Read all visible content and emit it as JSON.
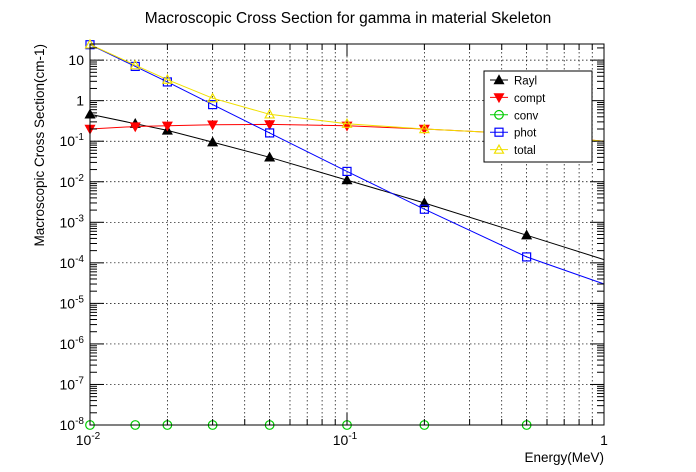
{
  "chart_data": {
    "type": "line",
    "title": "Macroscopic Cross Section for gamma in material Skeleton",
    "xlabel": "Energy(MeV)",
    "ylabel": "Macroscopic Cross Section(cm-1)",
    "xscale": "log",
    "yscale": "log",
    "xlim": [
      0.01,
      1
    ],
    "ylim": [
      1e-08,
      25
    ],
    "grid": true,
    "legend_position": "top-right",
    "x_tick_labels": [
      {
        "value": 0.01,
        "base": "10",
        "exp": "-2"
      },
      {
        "value": 0.1,
        "base": "10",
        "exp": "-1"
      },
      {
        "value": 1,
        "base": "1",
        "exp": ""
      }
    ],
    "y_tick_labels": [
      {
        "value": 1e-08,
        "base": "10",
        "exp": "-8"
      },
      {
        "value": 1e-07,
        "base": "10",
        "exp": "-7"
      },
      {
        "value": 1e-06,
        "base": "10",
        "exp": "-6"
      },
      {
        "value": 1e-05,
        "base": "10",
        "exp": "-5"
      },
      {
        "value": 0.0001,
        "base": "10",
        "exp": "-4"
      },
      {
        "value": 0.001,
        "base": "10",
        "exp": "-3"
      },
      {
        "value": 0.01,
        "base": "10",
        "exp": "-2"
      },
      {
        "value": 0.1,
        "base": "10",
        "exp": "-1"
      },
      {
        "value": 1,
        "base": "1",
        "exp": ""
      },
      {
        "value": 10,
        "base": "10",
        "exp": ""
      }
    ],
    "series": [
      {
        "name": "Rayl",
        "color": "#000000",
        "marker": "triangle-up",
        "filled": true,
        "line": [
          [
            0.01,
            0.46
          ],
          [
            0.015,
            0.27
          ],
          [
            0.02,
            0.185
          ],
          [
            0.03,
            0.095
          ],
          [
            0.05,
            0.04
          ],
          [
            0.1,
            0.011
          ],
          [
            0.2,
            0.003
          ],
          [
            0.5,
            0.00048
          ],
          [
            1,
            0.00012
          ]
        ],
        "markers": [
          [
            0.01,
            0.46
          ],
          [
            0.015,
            0.27
          ],
          [
            0.02,
            0.185
          ],
          [
            0.03,
            0.095
          ],
          [
            0.05,
            0.04
          ],
          [
            0.1,
            0.011
          ],
          [
            0.2,
            0.003
          ],
          [
            0.5,
            0.00048
          ]
        ]
      },
      {
        "name": "compt",
        "color": "#ff0000",
        "marker": "triangle-down",
        "filled": true,
        "line": [
          [
            0.01,
            0.2
          ],
          [
            0.015,
            0.23
          ],
          [
            0.02,
            0.24
          ],
          [
            0.03,
            0.255
          ],
          [
            0.05,
            0.26
          ],
          [
            0.1,
            0.24
          ],
          [
            0.2,
            0.2
          ],
          [
            0.5,
            0.15
          ],
          [
            1,
            0.1
          ]
        ],
        "markers": [
          [
            0.01,
            0.2
          ],
          [
            0.015,
            0.23
          ],
          [
            0.02,
            0.24
          ],
          [
            0.03,
            0.255
          ],
          [
            0.05,
            0.26
          ],
          [
            0.1,
            0.24
          ],
          [
            0.2,
            0.2
          ]
        ]
      },
      {
        "name": "conv",
        "color": "#00cc00",
        "marker": "circle",
        "filled": false,
        "line": [
          [
            0.01,
            1e-08
          ],
          [
            1,
            1e-08
          ]
        ],
        "markers": [
          [
            0.01,
            1e-08
          ],
          [
            0.015,
            1e-08
          ],
          [
            0.02,
            1e-08
          ],
          [
            0.03,
            1e-08
          ],
          [
            0.05,
            1e-08
          ],
          [
            0.1,
            1e-08
          ],
          [
            0.2,
            1e-08
          ],
          [
            0.5,
            1e-08
          ]
        ]
      },
      {
        "name": "phot",
        "color": "#0000ff",
        "marker": "square",
        "filled": false,
        "line": [
          [
            0.01,
            24
          ],
          [
            0.015,
            7
          ],
          [
            0.02,
            2.9
          ],
          [
            0.03,
            0.8
          ],
          [
            0.05,
            0.16
          ],
          [
            0.1,
            0.018
          ],
          [
            0.2,
            0.0021
          ],
          [
            0.5,
            0.00014
          ],
          [
            1,
            3e-05
          ]
        ],
        "markers": [
          [
            0.01,
            24
          ],
          [
            0.015,
            7
          ],
          [
            0.02,
            2.9
          ],
          [
            0.03,
            0.8
          ],
          [
            0.05,
            0.16
          ],
          [
            0.1,
            0.018
          ],
          [
            0.2,
            0.0021
          ],
          [
            0.5,
            0.00014
          ]
        ]
      },
      {
        "name": "total",
        "color": "#f0e000",
        "marker": "triangle-up",
        "filled": false,
        "line": [
          [
            0.01,
            24.5
          ],
          [
            0.015,
            7.5
          ],
          [
            0.02,
            3.3
          ],
          [
            0.03,
            1.15
          ],
          [
            0.05,
            0.46
          ],
          [
            0.1,
            0.27
          ],
          [
            0.2,
            0.2
          ],
          [
            0.5,
            0.15
          ],
          [
            1,
            0.1
          ]
        ],
        "markers": [
          [
            0.01,
            24.5
          ],
          [
            0.015,
            7.5
          ],
          [
            0.02,
            3.3
          ],
          [
            0.03,
            1.15
          ],
          [
            0.05,
            0.46
          ],
          [
            0.1,
            0.27
          ],
          [
            0.2,
            0.2
          ]
        ]
      }
    ]
  }
}
